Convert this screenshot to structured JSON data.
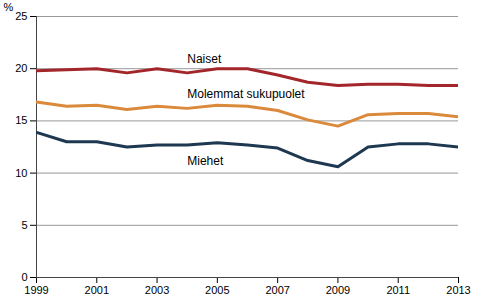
{
  "chart_data": {
    "type": "line",
    "y_label": "%",
    "x": [
      1999,
      2000,
      2001,
      2002,
      2003,
      2004,
      2005,
      2006,
      2007,
      2008,
      2009,
      2010,
      2011,
      2012,
      2013
    ],
    "series": [
      {
        "name": "Naiset",
        "color": "#a3262b",
        "values": [
          19.8,
          19.9,
          20.0,
          19.6,
          20.0,
          19.6,
          20.0,
          20.0,
          19.4,
          18.7,
          18.4,
          18.5,
          18.5,
          18.4,
          18.4
        ]
      },
      {
        "name": "Molemmat sukupuolet",
        "color": "#da8a3a",
        "values": [
          16.8,
          16.4,
          16.5,
          16.1,
          16.4,
          16.2,
          16.5,
          16.4,
          16.0,
          15.1,
          14.5,
          15.6,
          15.7,
          15.7,
          15.4
        ]
      },
      {
        "name": "Miehet",
        "color": "#1d3850",
        "values": [
          13.9,
          13.0,
          13.0,
          12.5,
          12.7,
          12.7,
          12.9,
          12.7,
          12.4,
          11.2,
          10.6,
          12.5,
          12.8,
          12.8,
          12.5
        ]
      }
    ],
    "xlim": [
      1999,
      2013
    ],
    "xticks": [
      1999,
      2001,
      2003,
      2005,
      2007,
      2009,
      2011,
      2013
    ],
    "ylim": [
      0,
      25
    ],
    "yticks": [
      0,
      5,
      10,
      15,
      20,
      25
    ],
    "grid": true
  }
}
